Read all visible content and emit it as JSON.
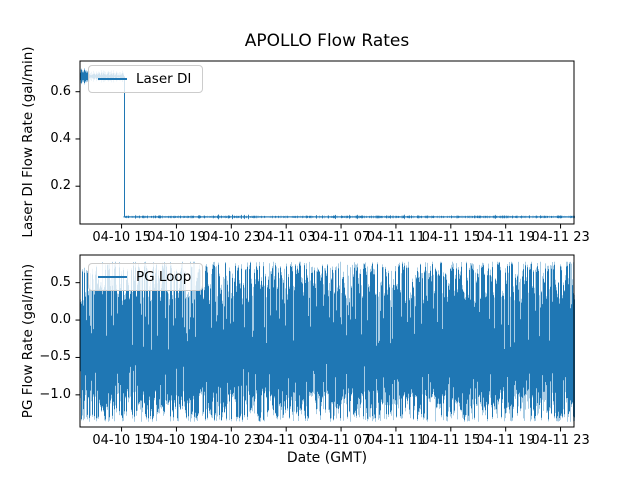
{
  "figure": {
    "background": "#ffffff",
    "line_color": "#1f77b4",
    "line_color_light": "#a8cce4",
    "text_color": "#000000",
    "legend_border_color": "#cccccc"
  },
  "chart_data": [
    {
      "type": "line",
      "subplot": "top",
      "title": "APOLLO Flow Rates",
      "ylabel": "Laser DI Flow Rate (gal/min)",
      "xlabel": "",
      "legend": {
        "label": "Laser DI",
        "loc": "upper left"
      },
      "ylim": [
        0.04,
        0.73
      ],
      "ytick_values": [
        0.2,
        0.4,
        0.6
      ],
      "yticklabels": [
        "0.2",
        "0.4",
        "0.6"
      ],
      "xlim_hours": [
        11.97,
        47.98
      ],
      "xtick_hours": [
        15,
        19,
        23,
        27,
        31,
        35,
        39,
        43,
        47
      ],
      "xticklabels": [
        "04-10 15",
        "04-10 19",
        "04-10 23",
        "04-11 03",
        "04-11 07",
        "04-11 11",
        "04-11 15",
        "04-11 19",
        "04-11 23"
      ],
      "series": [
        {
          "name": "Laser DI",
          "color": "#1f77b4",
          "description": "Flow holds near 0.665 gal/min with small noise from the left edge until 04-10 ~15:06, then steps down to ~0.07 gal/min with tiny noise through the end of the record.",
          "segments": [
            {
              "start_hour": 11.97,
              "end_hour": 15.13,
              "value": 0.665,
              "noise": 0.018
            },
            {
              "start_hour": 15.13,
              "end_hour": 47.98,
              "value": 0.07,
              "noise": 0.004
            }
          ]
        }
      ]
    },
    {
      "type": "line",
      "subplot": "bottom",
      "title": "",
      "ylabel": "PG Flow Rate (gal/min)",
      "xlabel": "Date (GMT)",
      "legend": {
        "label": "PG Loop",
        "loc": "upper left"
      },
      "ylim": [
        -1.43,
        0.87
      ],
      "ytick_values": [
        0.5,
        0.0,
        -0.5,
        -1.0
      ],
      "yticklabels": [
        "0.5",
        "0.0",
        "−0.5",
        "−1.0"
      ],
      "xlim_hours": [
        11.97,
        47.98
      ],
      "xtick_hours": [
        15,
        19,
        23,
        27,
        31,
        35,
        39,
        43,
        47
      ],
      "xticklabels": [
        "04-10 15",
        "04-10 19",
        "04-10 23",
        "04-11 03",
        "04-11 07",
        "04-11 11",
        "04-11 15",
        "04-11 19",
        "04-11 23"
      ],
      "series": [
        {
          "name": "PG Loop",
          "color": "#1f77b4",
          "description": "Dense rapid oscillation filling the axes for the whole time range; upper envelope roughly +0.25 to +0.78 gal/min, lower envelope roughly -0.95 to -1.36 gal/min.",
          "band": {
            "upper_min": 0.25,
            "upper_max": 0.78,
            "lower_min": -1.36,
            "lower_max": -0.95
          }
        }
      ]
    }
  ]
}
